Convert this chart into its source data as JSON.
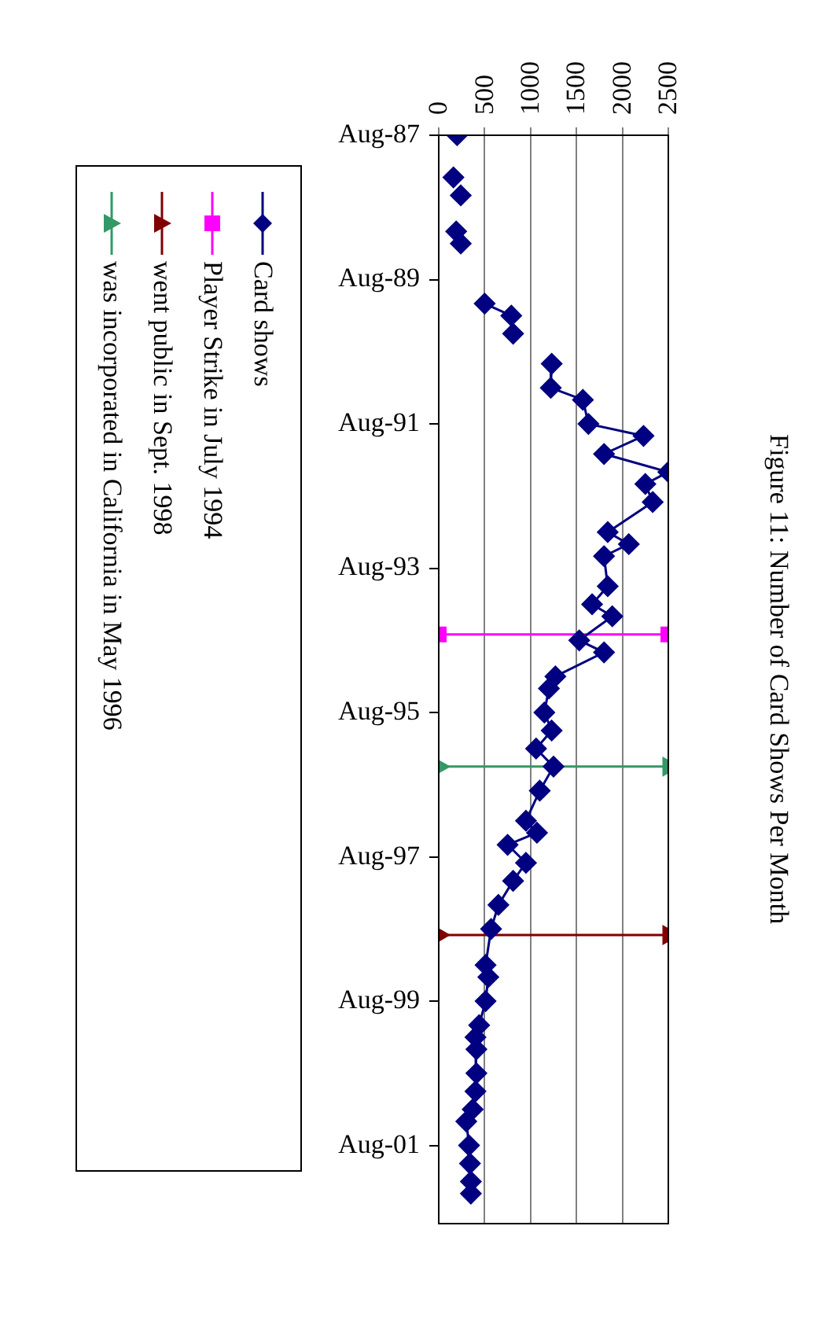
{
  "chart_data": {
    "type": "line",
    "title": "Figure 11: Number of Card Shows Per Month",
    "x": [
      "1987-08",
      "1987-11",
      "1988-03",
      "1988-05",
      "1988-06",
      "1988-09",
      "1988-12",
      "1989-01",
      "1989-02",
      "1989-07",
      "1989-12",
      "1990-02",
      "1990-05",
      "1990-08",
      "1990-10",
      "1991-02",
      "1991-04",
      "1991-08",
      "1991-10",
      "1992-01",
      "1992-04",
      "1992-06",
      "1992-09",
      "1993-02",
      "1993-04",
      "1993-06",
      "1993-11",
      "1994-02",
      "1994-04",
      "1994-08",
      "1994-10",
      "1995-02",
      "1995-04",
      "1995-08",
      "1995-11",
      "1996-02",
      "1996-05",
      "1996-09",
      "1997-02",
      "1997-04",
      "1997-06",
      "1997-09",
      "1997-12",
      "1998-04",
      "1998-08",
      "1999-02",
      "1999-04",
      "1999-08",
      "1999-12",
      "2000-02",
      "2000-04",
      "2000-08",
      "2000-11",
      "2001-02",
      "2001-04",
      "2001-08",
      "2001-11",
      "2002-02",
      "2002-04"
    ],
    "series": [
      {
        "name": "Card shows",
        "color": "#000080",
        "marker": "diamond",
        "values": [
          200,
          null,
          160,
          null,
          240,
          null,
          190,
          null,
          240,
          null,
          500,
          790,
          810,
          null,
          1230,
          1220,
          1570,
          1630,
          2230,
          1800,
          2500,
          2250,
          2330,
          1840,
          2070,
          1800,
          1840,
          1670,
          1890,
          1530,
          1800,
          1270,
          1200,
          1150,
          1230,
          1060,
          1250,
          1100,
          950,
          1070,
          750,
          950,
          810,
          650,
          570,
          510,
          540,
          510,
          440,
          400,
          410,
          410,
          400,
          370,
          300,
          330,
          340,
          350,
          350
        ]
      },
      {
        "name": "Player Strike in July 1994",
        "color": "#ff00ff",
        "marker": "square",
        "x": [
          "1994-07",
          "1994-07"
        ],
        "values": [
          0,
          2500
        ]
      },
      {
        "name": "went public in Sept. 1998",
        "color": "#800000",
        "marker": "triangle",
        "x": [
          "1998-09",
          "1998-09"
        ],
        "values": [
          0,
          2500
        ]
      },
      {
        "name": "was incorporated in California in May 1996",
        "color": "#339966",
        "marker": "triangle",
        "x": [
          "1996-05",
          "1996-05"
        ],
        "values": [
          0,
          2500
        ]
      }
    ],
    "orientation": "horizontal",
    "ylim": [
      "2002-09",
      "1987-08"
    ],
    "yticks": [
      {
        "value": "1987-08",
        "label": "Aug-87"
      },
      {
        "value": "1989-08",
        "label": "Aug-89"
      },
      {
        "value": "1991-08",
        "label": "Aug-91"
      },
      {
        "value": "1993-08",
        "label": "Aug-93"
      },
      {
        "value": "1995-08",
        "label": "Aug-95"
      },
      {
        "value": "1997-08",
        "label": "Aug-97"
      },
      {
        "value": "1999-08",
        "label": "Aug-99"
      },
      {
        "value": "2001-08",
        "label": "Aug-01"
      }
    ],
    "xlim": [
      0,
      2500
    ],
    "xticks": [
      0,
      500,
      1000,
      1500,
      2000,
      2500
    ],
    "grid": "x",
    "legend": "left"
  }
}
